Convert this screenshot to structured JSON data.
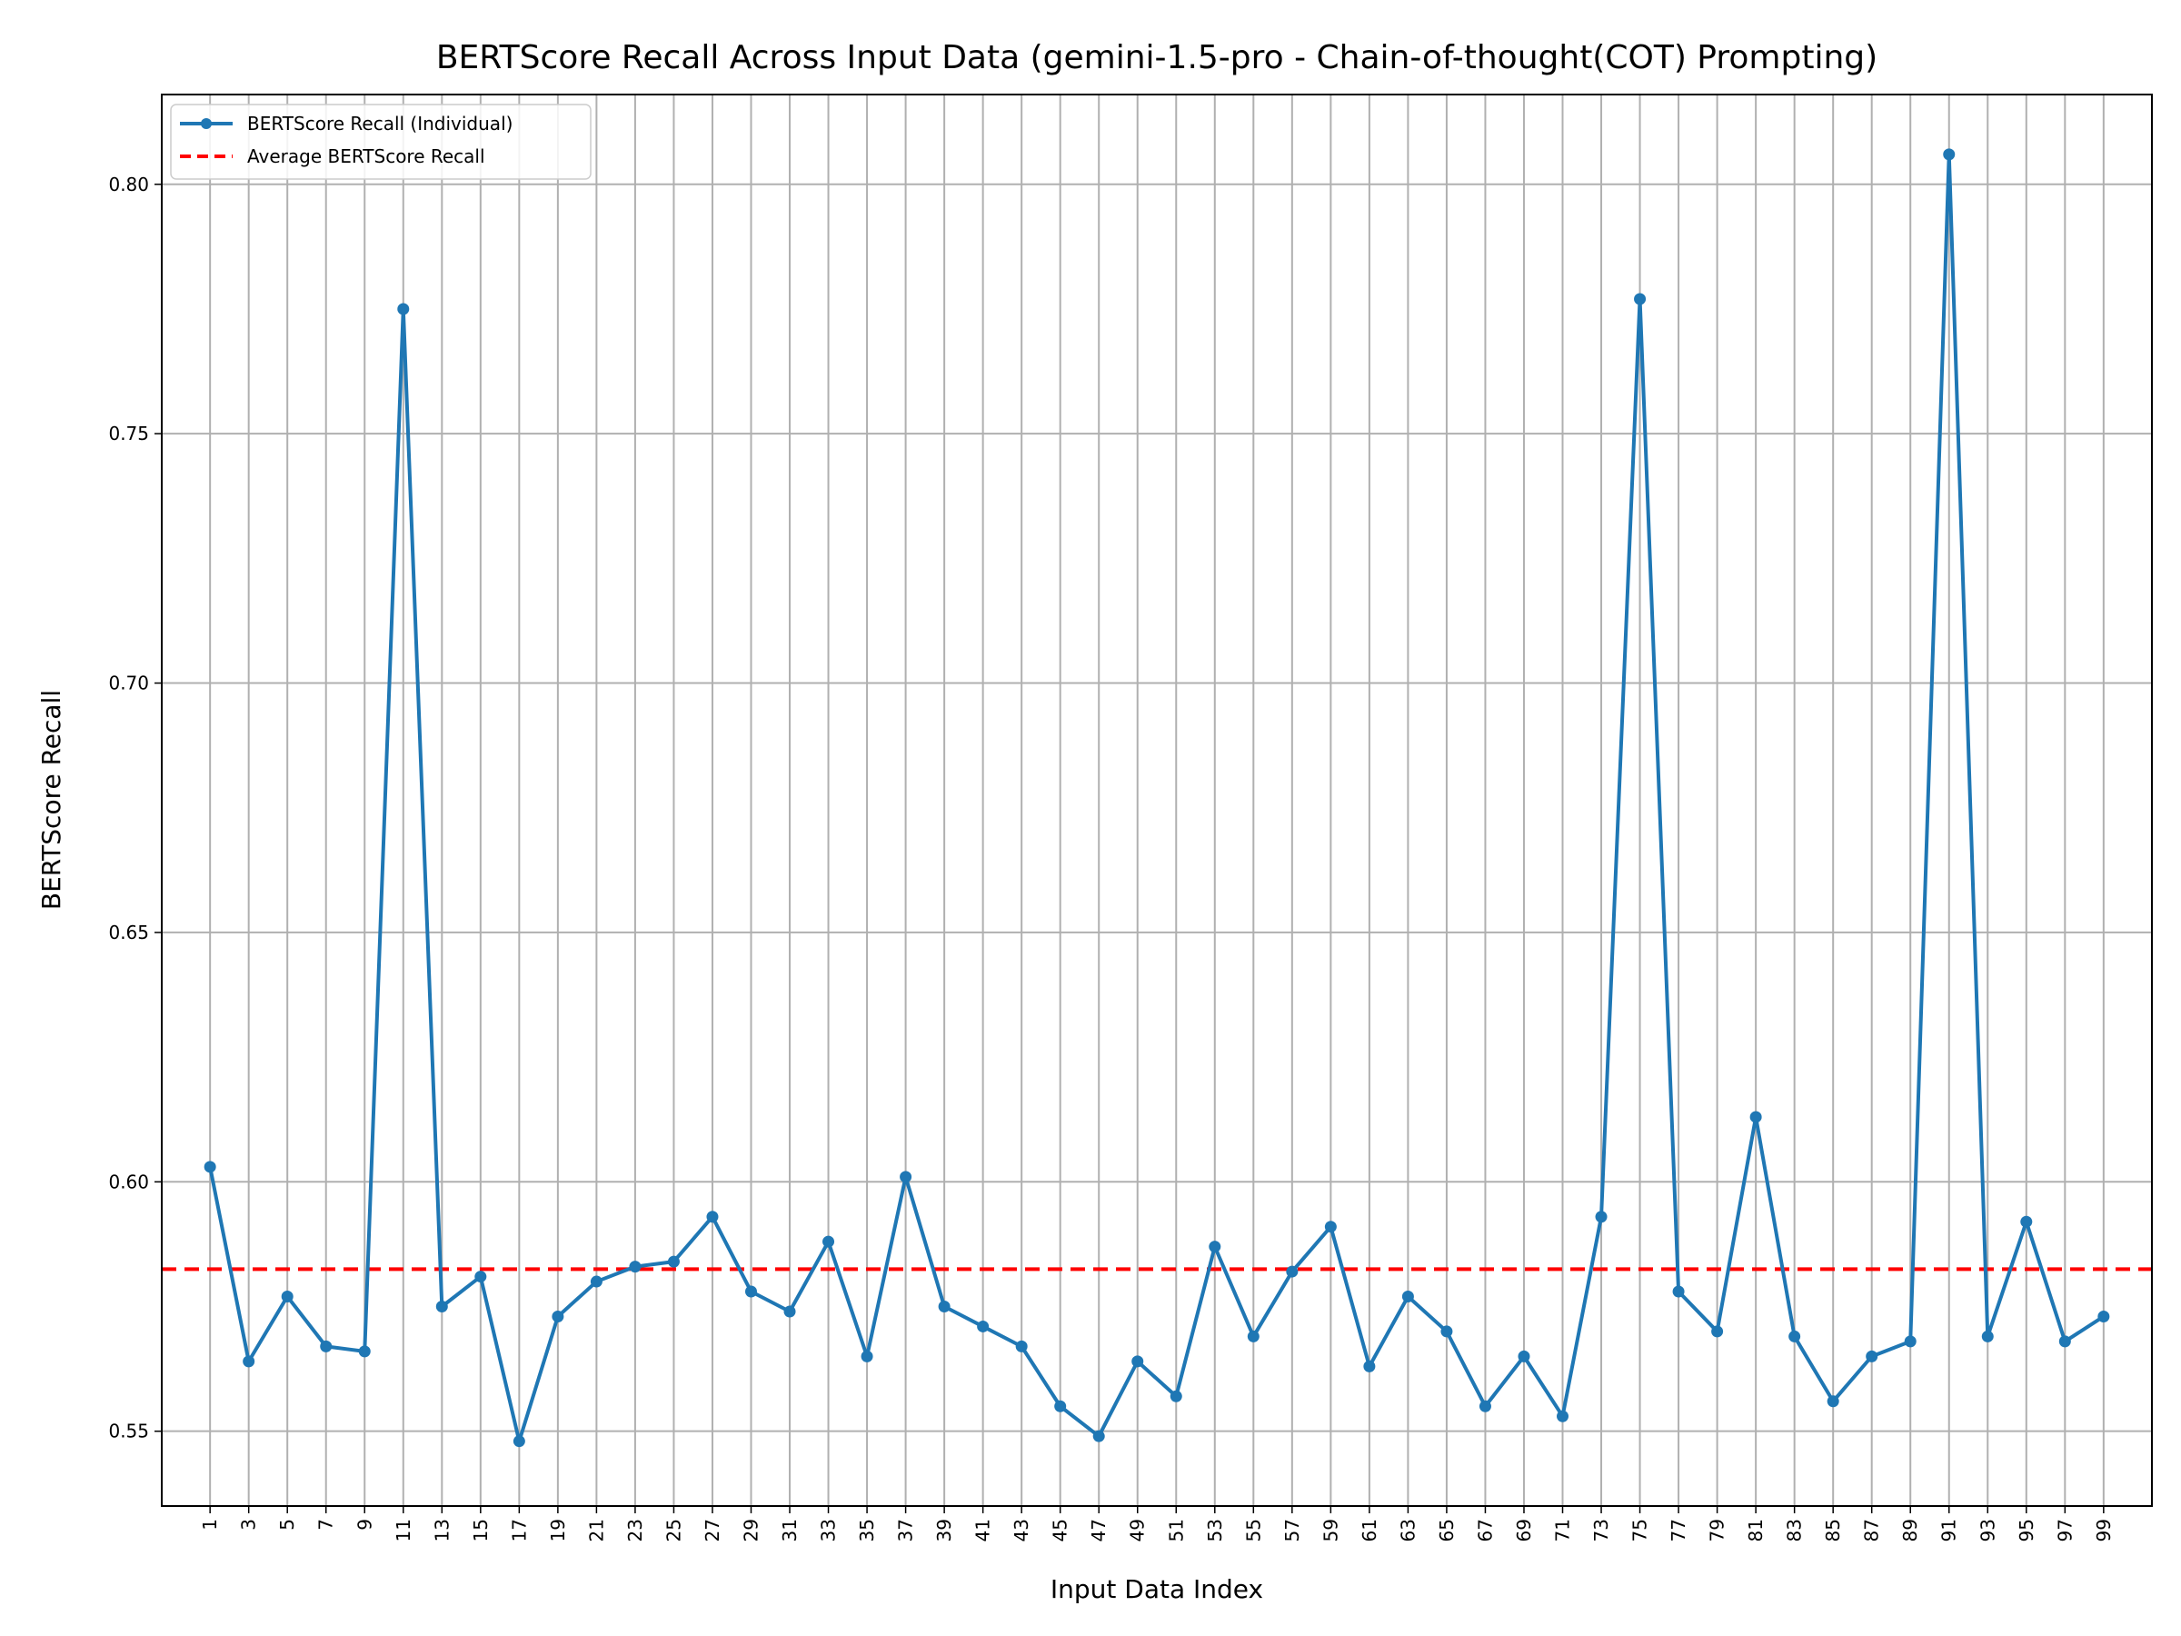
{
  "chart_data": {
    "type": "line",
    "title": "BERTScore Recall Across Input Data (gemini-1.5-pro - Chain-of-thought(COT) Prompting)",
    "xlabel": "Input Data Index",
    "ylabel": "BERTScore Recall",
    "xlim": [
      -1.5,
      101.5
    ],
    "ylim": [
      0.535,
      0.818
    ],
    "x": [
      1,
      3,
      5,
      7,
      9,
      11,
      13,
      15,
      17,
      19,
      21,
      23,
      25,
      27,
      29,
      31,
      33,
      35,
      37,
      39,
      41,
      43,
      45,
      47,
      49,
      51,
      53,
      55,
      57,
      59,
      61,
      63,
      65,
      67,
      69,
      71,
      73,
      75,
      77,
      79,
      81,
      83,
      85,
      87,
      89,
      91,
      93,
      95,
      97,
      99
    ],
    "x_tick_labels": [
      "1",
      "3",
      "5",
      "7",
      "9",
      "11",
      "13",
      "15",
      "17",
      "19",
      "21",
      "23",
      "25",
      "27",
      "29",
      "31",
      "33",
      "35",
      "37",
      "39",
      "41",
      "43",
      "45",
      "47",
      "49",
      "51",
      "53",
      "55",
      "57",
      "59",
      "61",
      "63",
      "65",
      "67",
      "69",
      "71",
      "73",
      "75",
      "77",
      "79",
      "81",
      "83",
      "85",
      "87",
      "89",
      "91",
      "93",
      "95",
      "97",
      "99"
    ],
    "y_ticks": [
      0.55,
      0.6,
      0.65,
      0.7,
      0.75,
      0.8
    ],
    "y_tick_labels": [
      "0.55",
      "0.60",
      "0.65",
      "0.70",
      "0.75",
      "0.80"
    ],
    "series": [
      {
        "name": "BERTScore Recall (Individual)",
        "color": "#1f77b4",
        "style": "solid-with-markers",
        "values": [
          0.603,
          0.564,
          0.577,
          0.567,
          0.566,
          0.775,
          0.575,
          0.581,
          0.548,
          0.573,
          0.58,
          0.583,
          0.584,
          0.593,
          0.578,
          0.574,
          0.588,
          0.565,
          0.601,
          0.575,
          0.571,
          0.567,
          0.555,
          0.549,
          0.564,
          0.557,
          0.587,
          0.569,
          0.582,
          0.591,
          0.563,
          0.577,
          0.57,
          0.555,
          0.565,
          0.553,
          0.593,
          0.777,
          0.578,
          0.57,
          0.613,
          0.569,
          0.556,
          0.565,
          0.568,
          0.806,
          0.569,
          0.592,
          0.568,
          0.573
        ]
      }
    ],
    "average": {
      "name": "Average BERTScore Recall",
      "value": 0.5825,
      "color": "#ff0000",
      "style": "dashed"
    },
    "grid": true,
    "legend_position": "top-left"
  }
}
